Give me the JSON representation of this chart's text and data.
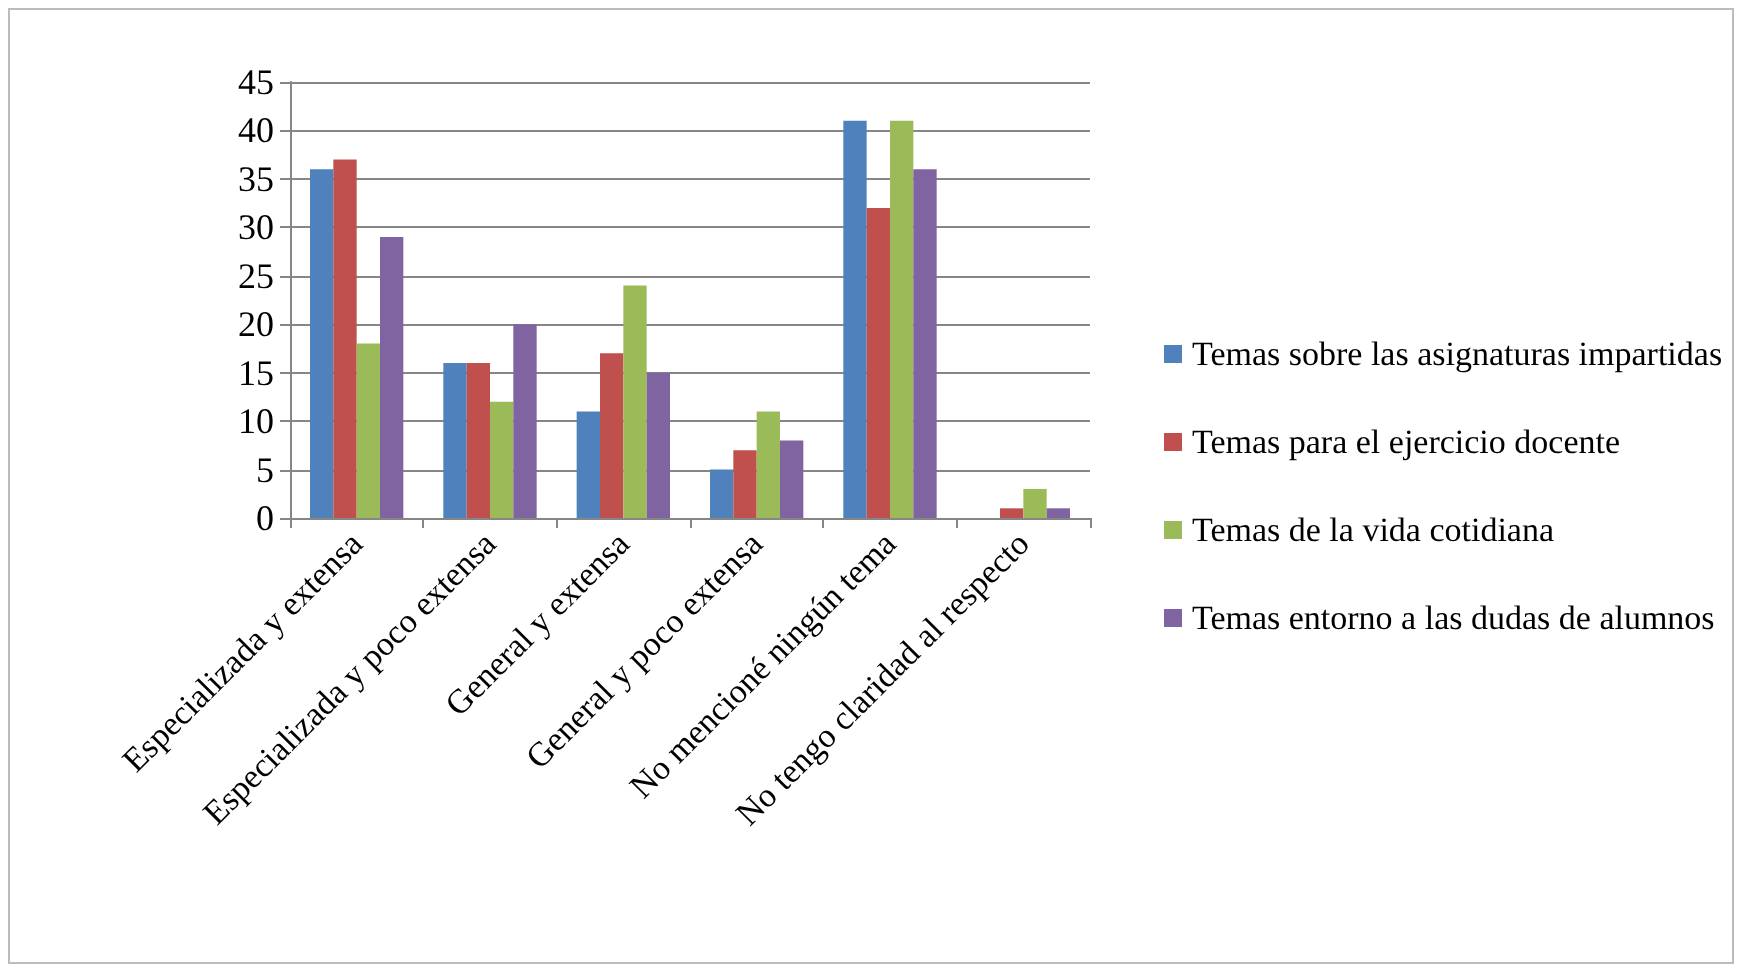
{
  "chart_data": {
    "type": "bar",
    "categories": [
      "Especializada y extensa",
      "Especializada y poco extensa",
      "General y extensa",
      "General y poco extensa",
      "No mencioné ningún tema",
      "No tengo claridad al respecto"
    ],
    "series": [
      {
        "name": "Temas sobre las asignaturas impartidas",
        "color": "#4f81bd",
        "values": [
          36,
          16,
          11,
          5,
          41,
          0
        ]
      },
      {
        "name": "Temas para el ejercicio docente",
        "color": "#c0504d",
        "values": [
          37,
          16,
          17,
          7,
          32,
          1
        ]
      },
      {
        "name": "Temas de la vida cotidiana",
        "color": "#9bbb59",
        "values": [
          18,
          12,
          24,
          11,
          41,
          3
        ]
      },
      {
        "name": "Temas entorno a las dudas de alumnos",
        "color": "#8064a2",
        "values": [
          29,
          20,
          15,
          8,
          36,
          1
        ]
      }
    ],
    "ylim": [
      0,
      45
    ],
    "yticks": [
      0,
      5,
      10,
      15,
      20,
      25,
      30,
      35,
      40,
      45
    ],
    "grid": "y",
    "legend": "right"
  }
}
